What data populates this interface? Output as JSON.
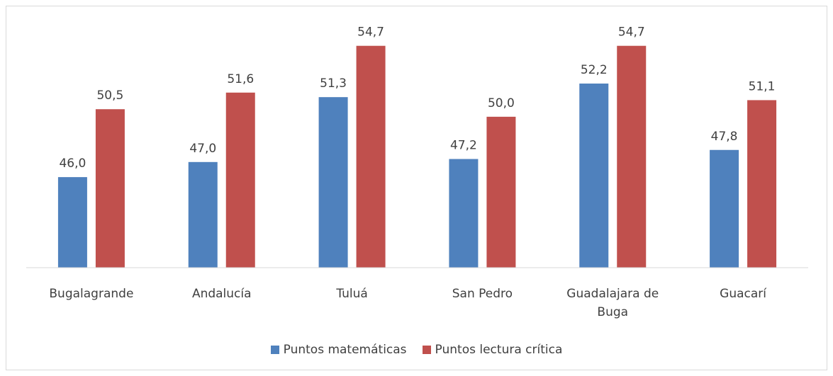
{
  "chart_data": {
    "type": "bar",
    "categories": [
      "Bugalagrande",
      "Andalucía",
      "Tuluá",
      "San Pedro",
      "Guadalajara de Buga",
      "Guacarí"
    ],
    "series": [
      {
        "name": "Puntos matemáticas",
        "color": "#4f81bd",
        "values": [
          46.0,
          47.0,
          51.3,
          47.2,
          52.2,
          47.8
        ],
        "value_labels": [
          "46,0",
          "47,0",
          "51,3",
          "47,2",
          "52,2",
          "47,8"
        ]
      },
      {
        "name": "Puntos lectura crítica",
        "color": "#c0504d",
        "values": [
          50.5,
          51.6,
          54.7,
          50.0,
          54.7,
          51.1
        ],
        "value_labels": [
          "50,5",
          "51,6",
          "54,7",
          "50,0",
          "54,7",
          "51,1"
        ]
      }
    ],
    "ylim": [
      40,
      56
    ],
    "legend": "bottom"
  }
}
